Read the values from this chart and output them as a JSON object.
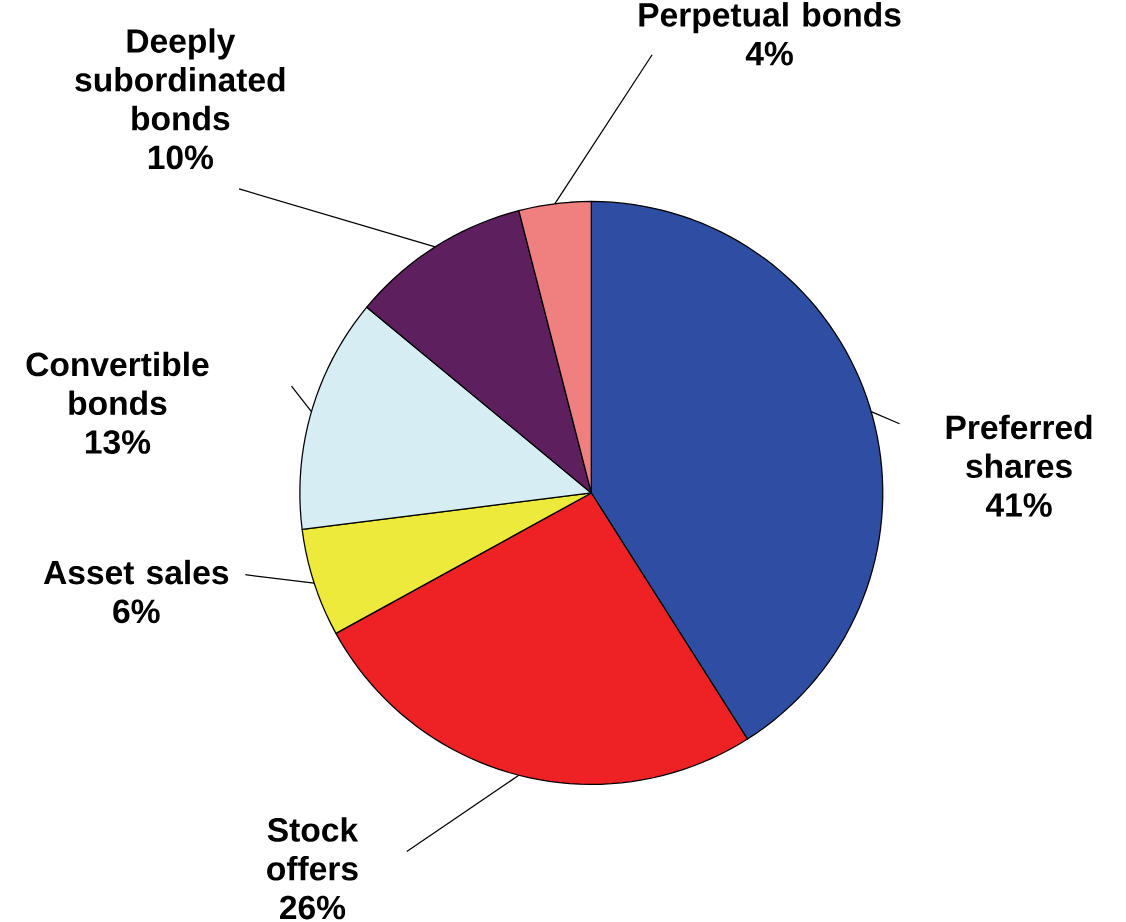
{
  "chart_data": {
    "type": "pie",
    "categories": [
      "Preferred shares",
      "Stock offers",
      "Asset sales",
      "Convertible bonds",
      "Deeply subordinated bonds",
      "Perpetual bonds"
    ],
    "values": [
      41,
      26,
      6,
      13,
      10,
      4
    ],
    "colors": [
      "#2e4ea3",
      "#ee2224",
      "#eeea3c",
      "#d5edf3",
      "#5e1f5e",
      "#f08080"
    ],
    "value_labels": [
      "41%",
      "26%",
      "6%",
      "13%",
      "10%",
      "4%"
    ]
  }
}
